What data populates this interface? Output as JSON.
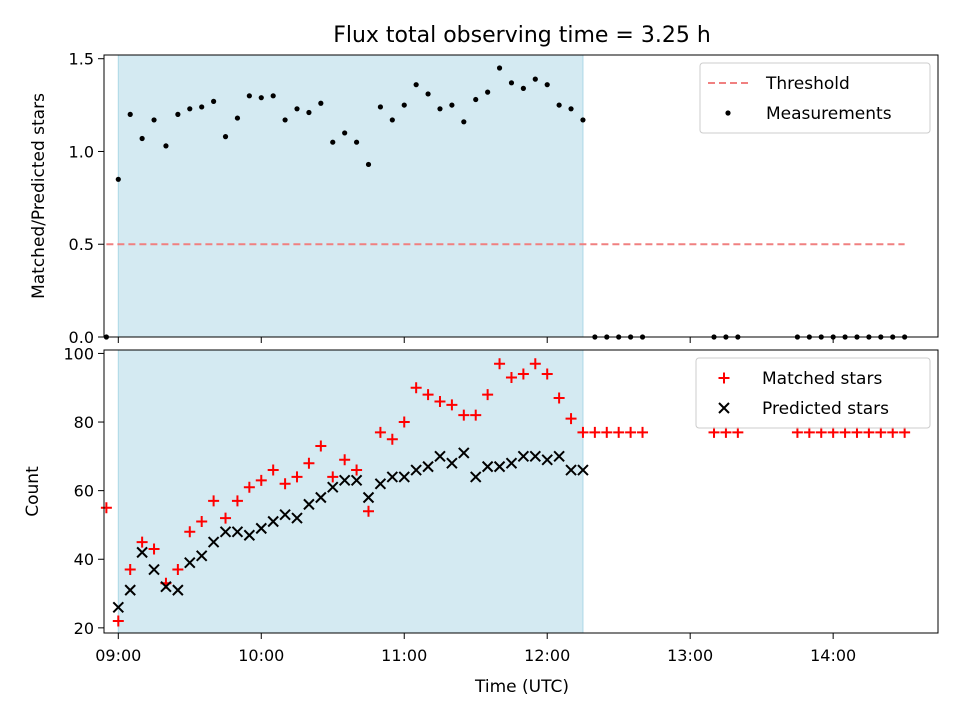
{
  "figure": {
    "title": "Flux total observing time = 3.25 h",
    "xlabel": "Time (UTC)"
  },
  "chart_data": [
    {
      "type": "scatter",
      "panel": "top",
      "ylabel": "Matched/Predicted stars",
      "ylim": [
        0,
        1.52
      ],
      "yticks": [
        0.0,
        0.5,
        1.0,
        1.5
      ],
      "ytick_labels": [
        "0.0",
        "0.5",
        "1.0",
        "1.5"
      ],
      "xlim": [
        "08:54",
        "14:44"
      ],
      "shaded_span": {
        "start": "09:00",
        "end": "12:15",
        "color": "#add8e6"
      },
      "legend_position": "top-right",
      "threshold": {
        "name": "Threshold",
        "value": 0.5,
        "x_start": "08:55",
        "x_end": "14:30",
        "color": "#f08080",
        "style": "dashed"
      },
      "series": [
        {
          "name": "Measurements",
          "color": "#000000",
          "marker": "dot",
          "x": [
            "08:55",
            "09:00",
            "09:05",
            "09:10",
            "09:15",
            "09:20",
            "09:25",
            "09:30",
            "09:35",
            "09:40",
            "09:45",
            "09:50",
            "09:55",
            "10:00",
            "10:05",
            "10:10",
            "10:15",
            "10:20",
            "10:25",
            "10:30",
            "10:35",
            "10:40",
            "10:45",
            "10:50",
            "10:55",
            "11:00",
            "11:05",
            "11:10",
            "11:15",
            "11:20",
            "11:25",
            "11:30",
            "11:35",
            "11:40",
            "11:45",
            "11:50",
            "11:55",
            "12:00",
            "12:05",
            "12:10",
            "12:15",
            "12:20",
            "12:25",
            "12:30",
            "12:35",
            "12:40",
            "13:10",
            "13:15",
            "13:20",
            "13:45",
            "13:50",
            "13:55",
            "14:00",
            "14:05",
            "14:10",
            "14:15",
            "14:20",
            "14:25",
            "14:30"
          ],
          "y": [
            0,
            0.85,
            1.2,
            1.07,
            1.17,
            1.03,
            1.2,
            1.23,
            1.24,
            1.27,
            1.08,
            1.18,
            1.3,
            1.29,
            1.3,
            1.17,
            1.23,
            1.21,
            1.26,
            1.05,
            1.1,
            1.05,
            0.93,
            1.24,
            1.17,
            1.25,
            1.36,
            1.31,
            1.23,
            1.25,
            1.16,
            1.28,
            1.32,
            1.45,
            1.37,
            1.34,
            1.39,
            1.36,
            1.25,
            1.23,
            1.17,
            0,
            0,
            0,
            0,
            0,
            0,
            0,
            0,
            0,
            0,
            0,
            0,
            0,
            0,
            0,
            0,
            0,
            0
          ]
        }
      ]
    },
    {
      "type": "scatter",
      "panel": "bottom",
      "ylabel": "Count",
      "ylim": [
        18.5,
        101
      ],
      "yticks": [
        20,
        40,
        60,
        80,
        100
      ],
      "ytick_labels": [
        "20",
        "40",
        "60",
        "80",
        "100"
      ],
      "xlim": [
        "08:54",
        "14:44"
      ],
      "xticks": [
        "09:00",
        "10:00",
        "11:00",
        "12:00",
        "13:00",
        "14:00"
      ],
      "xtick_labels": [
        "09:00",
        "10:00",
        "11:00",
        "12:00",
        "13:00",
        "14:00"
      ],
      "shaded_span": {
        "start": "09:00",
        "end": "12:15",
        "color": "#add8e6"
      },
      "legend_position": "top-right",
      "series": [
        {
          "name": "Matched stars",
          "color": "#ff0000",
          "marker": "plus",
          "x": [
            "08:55",
            "09:00",
            "09:05",
            "09:10",
            "09:15",
            "09:20",
            "09:25",
            "09:30",
            "09:35",
            "09:40",
            "09:45",
            "09:50",
            "09:55",
            "10:00",
            "10:05",
            "10:10",
            "10:15",
            "10:20",
            "10:25",
            "10:30",
            "10:35",
            "10:40",
            "10:45",
            "10:50",
            "10:55",
            "11:00",
            "11:05",
            "11:10",
            "11:15",
            "11:20",
            "11:25",
            "11:30",
            "11:35",
            "11:40",
            "11:45",
            "11:50",
            "11:55",
            "12:00",
            "12:05",
            "12:10",
            "12:15",
            "12:20",
            "12:25",
            "12:30",
            "12:35",
            "12:40",
            "13:10",
            "13:15",
            "13:20",
            "13:45",
            "13:50",
            "13:55",
            "14:00",
            "14:05",
            "14:10",
            "14:15",
            "14:20",
            "14:25",
            "14:30"
          ],
          "y": [
            55,
            22,
            37,
            45,
            43,
            33,
            37,
            48,
            51,
            57,
            52,
            57,
            61,
            63,
            66,
            62,
            64,
            68,
            73,
            64,
            69,
            66,
            54,
            77,
            75,
            80,
            90,
            88,
            86,
            85,
            82,
            82,
            88,
            97,
            93,
            94,
            97,
            94,
            87,
            81,
            77,
            77,
            77,
            77,
            77,
            77,
            77,
            77,
            77,
            77,
            77,
            77,
            77,
            77,
            77,
            77,
            77,
            77,
            77
          ]
        },
        {
          "name": "Predicted stars",
          "color": "#000000",
          "marker": "x",
          "x": [
            "09:00",
            "09:05",
            "09:10",
            "09:15",
            "09:20",
            "09:25",
            "09:30",
            "09:35",
            "09:40",
            "09:45",
            "09:50",
            "09:55",
            "10:00",
            "10:05",
            "10:10",
            "10:15",
            "10:20",
            "10:25",
            "10:30",
            "10:35",
            "10:40",
            "10:45",
            "10:50",
            "10:55",
            "11:00",
            "11:05",
            "11:10",
            "11:15",
            "11:20",
            "11:25",
            "11:30",
            "11:35",
            "11:40",
            "11:45",
            "11:50",
            "11:55",
            "12:00",
            "12:05",
            "12:10",
            "12:15"
          ],
          "y": [
            26,
            31,
            42,
            37,
            32,
            31,
            39,
            41,
            45,
            48,
            48,
            47,
            49,
            51,
            53,
            52,
            56,
            58,
            61,
            63,
            63,
            58,
            62,
            64,
            64,
            66,
            67,
            70,
            68,
            71,
            64,
            67,
            67,
            68,
            70,
            70,
            69,
            70,
            66,
            66
          ]
        }
      ]
    }
  ]
}
